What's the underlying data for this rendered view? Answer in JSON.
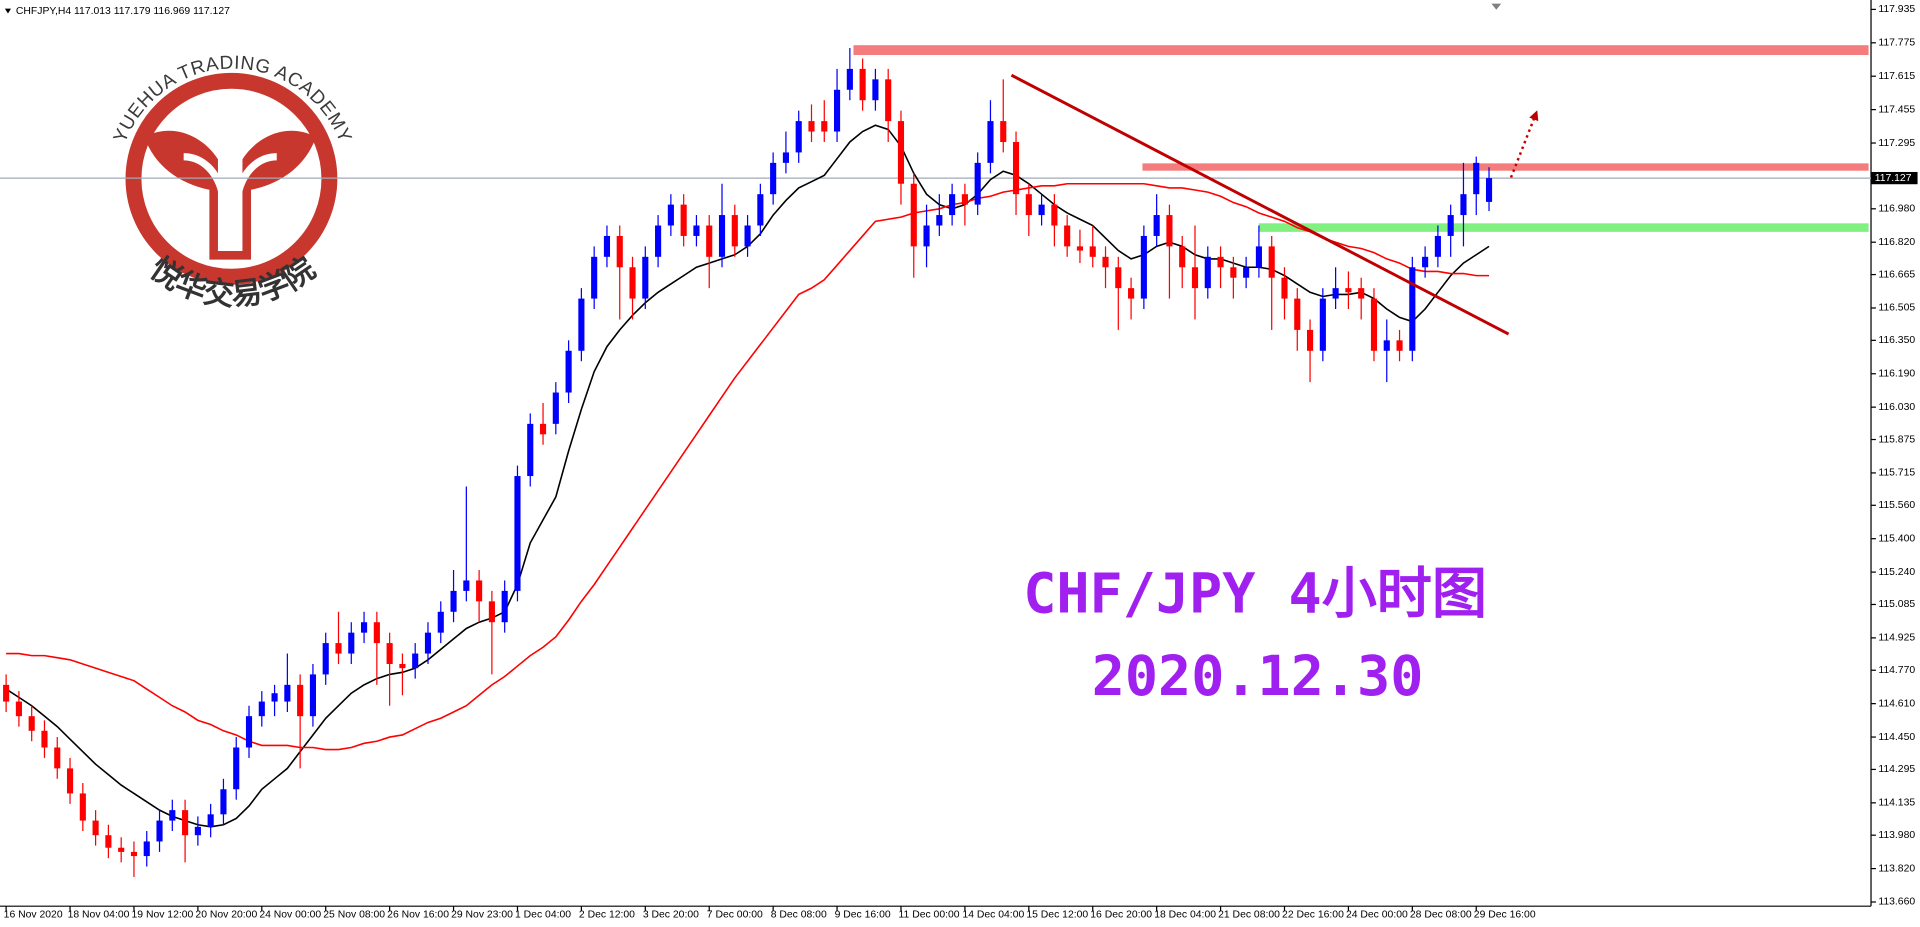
{
  "chart_data": {
    "type": "candlestick",
    "symbol": "CHFJPY,H4",
    "title": "CHF/JPY 4小时图",
    "subtitle": "2020.12.30",
    "logo_text": "YUEHUA TRADING ACADEMY",
    "logo_text_cn": "悦华交易学院",
    "up_color": "#0000ff",
    "down_color": "#ff0000",
    "ylim": [
      113.64,
      117.98
    ],
    "yticks": [
      117.935,
      117.775,
      117.615,
      117.455,
      117.295,
      {
        "value": 116.98,
        "label": "116.980"
      },
      {
        "value": 116.82,
        "label": "116.820"
      },
      116.665,
      116.505,
      {
        "value": 116.35,
        "label": "116.350"
      },
      {
        "value": 116.19,
        "label": "116.190"
      },
      {
        "value": 116.03,
        "label": "116.030"
      },
      115.875,
      115.715,
      {
        "value": 115.56,
        "label": "115.560"
      },
      {
        "value": 115.4,
        "label": "115.400"
      },
      {
        "value": 115.24,
        "label": "115.240"
      },
      115.085,
      114.925,
      {
        "value": 114.77,
        "label": "114.770"
      },
      {
        "value": 114.61,
        "label": "114.610"
      },
      {
        "value": 114.45,
        "label": "114.450"
      },
      114.295,
      114.135,
      {
        "value": 113.98,
        "label": "113.980"
      },
      {
        "value": 113.82,
        "label": "113.820"
      },
      {
        "value": 113.66,
        "label": "113.660"
      }
    ],
    "categories": [
      "16 Nov 2020",
      null,
      null,
      null,
      null,
      "18 Nov 04:00",
      null,
      null,
      null,
      null,
      "19 Nov 12:00",
      null,
      null,
      null,
      null,
      "20 Nov 20:00",
      null,
      null,
      null,
      null,
      "24 Nov 00:00",
      null,
      null,
      null,
      null,
      "25 Nov 08:00",
      null,
      null,
      null,
      null,
      "26 Nov 16:00",
      null,
      null,
      null,
      null,
      "29 Nov 23:00",
      null,
      null,
      null,
      null,
      "1 Dec 04:00",
      null,
      null,
      null,
      null,
      "2 Dec 12:00",
      null,
      null,
      null,
      null,
      "3 Dec 20:00",
      null,
      null,
      null,
      null,
      "7 Dec 00:00",
      null,
      null,
      null,
      null,
      "8 Dec 08:00",
      null,
      null,
      null,
      null,
      "9 Dec 16:00",
      null,
      null,
      null,
      null,
      "11 Dec 00:00",
      null,
      null,
      null,
      null,
      "14 Dec 04:00",
      null,
      null,
      null,
      null,
      "15 Dec 12:00",
      null,
      null,
      null,
      null,
      "16 Dec 20:00",
      null,
      null,
      null,
      null,
      "18 Dec 04:00",
      null,
      null,
      null,
      null,
      "21 Dec 08:00",
      null,
      null,
      null,
      null,
      "22 Dec 16:00",
      null,
      null,
      null,
      null,
      "24 Dec 00:00",
      null,
      null,
      null,
      null,
      "28 Dec 08:00",
      null,
      null,
      null,
      null,
      "29 Dec 16:00",
      null
    ],
    "open": [
      114.7,
      114.62,
      114.55,
      114.48,
      114.4,
      114.3,
      114.18,
      114.05,
      113.98,
      113.92,
      113.9,
      113.88,
      113.95,
      114.05,
      114.1,
      113.98,
      114.02,
      114.08,
      114.2,
      114.4,
      114.55,
      114.62,
      114.62,
      114.7,
      114.55,
      114.75,
      114.9,
      114.85,
      114.95,
      115.0,
      114.9,
      114.8,
      114.78,
      114.85,
      114.95,
      115.05,
      115.15,
      115.2,
      115.1,
      115.0,
      115.15,
      115.7,
      115.95,
      115.95,
      116.1,
      116.3,
      116.55,
      116.75,
      116.85,
      116.7,
      116.55,
      116.75,
      116.9,
      117.0,
      116.85,
      116.9,
      116.75,
      116.95,
      116.8,
      116.9,
      117.05,
      117.2,
      117.25,
      117.4,
      117.4,
      117.35,
      117.55,
      117.65,
      117.5,
      117.6,
      117.4,
      117.1,
      116.8,
      116.9,
      116.95,
      117.05,
      117.0,
      117.2,
      117.4,
      117.3,
      117.05,
      116.95,
      117.0,
      116.9,
      116.8,
      116.8,
      116.75,
      116.7,
      116.6,
      116.55,
      116.85,
      116.95,
      116.8,
      116.7,
      116.6,
      116.75,
      116.7,
      116.65,
      116.7,
      116.8,
      116.65,
      116.55,
      116.4,
      116.3,
      116.55,
      116.6,
      116.6,
      116.55,
      116.3,
      116.35,
      116.3,
      116.7,
      116.75,
      116.85,
      116.95,
      117.05,
      117.013
    ],
    "high": [
      114.75,
      114.67,
      114.6,
      114.53,
      114.45,
      114.35,
      114.23,
      114.1,
      114.03,
      113.97,
      113.95,
      114.0,
      114.1,
      114.15,
      114.15,
      114.07,
      114.13,
      114.25,
      114.45,
      114.6,
      114.67,
      114.7,
      114.85,
      114.75,
      114.8,
      114.95,
      115.05,
      115.0,
      115.05,
      115.05,
      114.95,
      114.85,
      114.9,
      115.0,
      115.1,
      115.25,
      115.65,
      115.25,
      115.15,
      115.2,
      115.75,
      116.0,
      116.05,
      116.15,
      116.35,
      116.6,
      116.8,
      116.9,
      116.9,
      116.75,
      116.8,
      116.95,
      117.05,
      117.05,
      116.95,
      116.95,
      117.1,
      117.0,
      116.95,
      117.1,
      117.25,
      117.35,
      117.45,
      117.48,
      117.5,
      117.65,
      117.75,
      117.7,
      117.65,
      117.65,
      117.45,
      117.15,
      117.0,
      117.05,
      117.1,
      117.1,
      117.25,
      117.5,
      117.6,
      117.35,
      117.1,
      117.05,
      117.05,
      116.95,
      116.88,
      116.9,
      116.8,
      116.75,
      116.65,
      116.9,
      117.05,
      117.0,
      116.85,
      116.9,
      116.8,
      116.8,
      116.75,
      116.75,
      116.9,
      116.85,
      116.7,
      116.6,
      116.45,
      116.6,
      116.7,
      116.68,
      116.65,
      116.6,
      116.45,
      116.4,
      116.75,
      116.8,
      116.9,
      117.0,
      117.2,
      117.23,
      117.179
    ],
    "low": [
      114.57,
      114.5,
      114.43,
      114.35,
      114.25,
      114.13,
      114.0,
      113.93,
      113.87,
      113.85,
      113.78,
      113.83,
      113.9,
      114.0,
      113.85,
      113.93,
      113.97,
      114.03,
      114.15,
      114.35,
      114.5,
      114.55,
      114.57,
      114.3,
      114.5,
      114.7,
      114.8,
      114.8,
      114.9,
      114.7,
      114.6,
      114.65,
      114.73,
      114.8,
      114.9,
      115.0,
      115.1,
      115.0,
      114.75,
      114.95,
      115.1,
      115.65,
      115.85,
      115.9,
      116.05,
      116.25,
      116.5,
      116.7,
      116.45,
      116.45,
      116.5,
      116.7,
      116.85,
      116.8,
      116.8,
      116.6,
      116.7,
      116.75,
      116.75,
      116.85,
      117.0,
      117.15,
      117.2,
      117.3,
      117.3,
      117.3,
      117.5,
      117.45,
      117.45,
      117.3,
      117.0,
      116.65,
      116.7,
      116.85,
      116.9,
      116.9,
      116.95,
      117.15,
      117.25,
      116.95,
      116.85,
      116.9,
      116.8,
      116.75,
      116.72,
      116.7,
      116.6,
      116.4,
      116.45,
      116.5,
      116.8,
      116.55,
      116.6,
      116.45,
      116.55,
      116.6,
      116.55,
      116.6,
      116.65,
      116.4,
      116.45,
      116.3,
      116.15,
      116.25,
      116.5,
      116.5,
      116.45,
      116.25,
      116.15,
      116.25,
      116.25,
      116.65,
      116.7,
      116.75,
      116.8,
      116.95,
      116.969
    ],
    "close": [
      114.62,
      114.55,
      114.48,
      114.4,
      114.3,
      114.18,
      114.05,
      113.98,
      113.92,
      113.9,
      113.88,
      113.95,
      114.05,
      114.1,
      113.98,
      114.02,
      114.08,
      114.2,
      114.4,
      114.55,
      114.62,
      114.66,
      114.7,
      114.55,
      114.75,
      114.9,
      114.85,
      114.95,
      115.0,
      114.9,
      114.8,
      114.78,
      114.85,
      114.95,
      115.05,
      115.15,
      115.2,
      115.1,
      115.0,
      115.15,
      115.7,
      115.95,
      115.9,
      116.1,
      116.3,
      116.55,
      116.75,
      116.85,
      116.7,
      116.55,
      116.75,
      116.9,
      117.0,
      116.85,
      116.9,
      116.75,
      116.95,
      116.8,
      116.9,
      117.05,
      117.2,
      117.25,
      117.4,
      117.35,
      117.35,
      117.55,
      117.65,
      117.5,
      117.6,
      117.4,
      117.1,
      116.8,
      116.9,
      116.95,
      117.05,
      117.0,
      117.2,
      117.4,
      117.3,
      117.05,
      116.95,
      117.0,
      116.9,
      116.8,
      116.78,
      116.75,
      116.7,
      116.6,
      116.55,
      116.85,
      116.95,
      116.8,
      116.7,
      116.6,
      116.75,
      116.7,
      116.65,
      116.7,
      116.8,
      116.65,
      116.55,
      116.4,
      116.3,
      116.55,
      116.6,
      116.58,
      116.55,
      116.3,
      116.35,
      116.3,
      116.7,
      116.75,
      116.85,
      116.95,
      117.05,
      117.2,
      117.127
    ],
    "lines": [
      {
        "color": "#000000",
        "values": [
          114.68,
          114.64,
          114.6,
          114.55,
          114.5,
          114.44,
          114.38,
          114.32,
          114.27,
          114.22,
          114.18,
          114.14,
          114.1,
          114.07,
          114.05,
          114.03,
          114.02,
          114.03,
          114.06,
          114.12,
          114.2,
          114.25,
          114.3,
          114.38,
          114.46,
          114.54,
          114.6,
          114.66,
          114.7,
          114.73,
          114.75,
          114.76,
          114.78,
          114.82,
          114.87,
          114.92,
          114.97,
          115.0,
          115.02,
          115.05,
          115.18,
          115.38,
          115.49,
          115.6,
          115.82,
          116.02,
          116.2,
          116.32,
          116.4,
          116.47,
          116.53,
          116.58,
          116.62,
          116.66,
          116.7,
          116.72,
          116.74,
          116.76,
          116.8,
          116.86,
          116.95,
          117.02,
          117.08,
          117.11,
          117.14,
          117.22,
          117.3,
          117.35,
          117.38,
          117.36,
          117.28,
          117.15,
          117.05,
          117.0,
          116.98,
          117.0,
          117.05,
          117.12,
          117.16,
          117.14,
          117.1,
          117.05,
          117.0,
          116.96,
          116.93,
          116.9,
          116.84,
          116.78,
          116.74,
          116.76,
          116.8,
          116.82,
          116.8,
          116.76,
          116.74,
          116.74,
          116.72,
          116.7,
          116.7,
          116.69,
          116.66,
          116.62,
          116.58,
          116.56,
          116.57,
          116.57,
          116.58,
          116.55,
          116.5,
          116.46,
          116.44,
          116.5,
          116.58,
          116.66,
          116.72,
          116.76,
          116.8
        ]
      },
      {
        "color": "#ff0000",
        "values": [
          114.85,
          114.85,
          114.84,
          114.84,
          114.83,
          114.82,
          114.8,
          114.78,
          114.76,
          114.74,
          114.72,
          114.68,
          114.64,
          114.6,
          114.57,
          114.53,
          114.51,
          114.48,
          114.46,
          114.43,
          114.41,
          114.41,
          114.41,
          114.4,
          114.4,
          114.39,
          114.39,
          114.4,
          114.42,
          114.43,
          114.45,
          114.46,
          114.49,
          114.52,
          114.54,
          114.57,
          114.6,
          114.65,
          114.7,
          114.74,
          114.79,
          114.84,
          114.88,
          114.93,
          115.01,
          115.1,
          115.18,
          115.27,
          115.36,
          115.45,
          115.54,
          115.63,
          115.72,
          115.81,
          115.9,
          115.99,
          116.08,
          116.17,
          116.25,
          116.33,
          116.41,
          116.49,
          116.57,
          116.6,
          116.64,
          116.71,
          116.78,
          116.85,
          116.92,
          116.93,
          116.94,
          116.96,
          116.97,
          116.98,
          117.0,
          117.01,
          117.03,
          117.04,
          117.06,
          117.07,
          117.08,
          117.09,
          117.09,
          117.1,
          117.1,
          117.1,
          117.1,
          117.1,
          117.1,
          117.1,
          117.09,
          117.08,
          117.08,
          117.07,
          117.06,
          117.04,
          117.01,
          116.99,
          116.96,
          116.94,
          116.92,
          116.89,
          116.87,
          116.84,
          116.82,
          116.8,
          116.79,
          116.77,
          116.74,
          116.72,
          116.69,
          116.68,
          116.68,
          116.67,
          116.67,
          116.66,
          116.66
        ]
      }
    ],
    "levels": [
      {
        "value": 117.74,
        "color": "#f47c7c"
      },
      {
        "value": 117.18,
        "color": "#f47c7c"
      },
      {
        "value": 116.89,
        "color": "#80f080"
      }
    ],
    "trendline": {
      "values": [
        117.62,
        116.38
      ],
      "color": "#c00000"
    },
    "arrow": {
      "values": [
        117.13,
        117.43
      ],
      "color": "#c00000"
    },
    "price_line_color": "#a0a8b8"
  }
}
